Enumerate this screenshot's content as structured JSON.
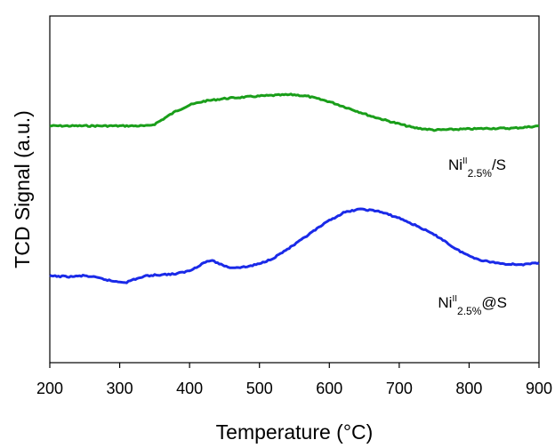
{
  "chart_data": {
    "type": "line",
    "title": "",
    "xlabel": "Temperature (°C)",
    "ylabel": "TCD Signal (a.u.)",
    "xlim": [
      200,
      900
    ],
    "ylim": [
      0,
      100
    ],
    "xticks": [
      200,
      300,
      400,
      500,
      600,
      700,
      800,
      900
    ],
    "grid": false,
    "y_tick_labels": false,
    "series": [
      {
        "label_base": "Ni",
        "label_sup": "II",
        "label_sub": "2.5%",
        "label_suffix": "/S",
        "color": "#1a9e1a",
        "x": [
          200,
          250,
          300,
          320,
          340,
          350,
          360,
          380,
          400,
          420,
          450,
          500,
          530,
          550,
          570,
          600,
          630,
          660,
          690,
          720,
          750,
          780,
          800,
          830,
          860,
          880,
          900
        ],
        "y": [
          68.3,
          68.3,
          68.3,
          68.3,
          68.3,
          68.8,
          70.0,
          72.5,
          74.3,
          75.4,
          76.2,
          76.9,
          77.2,
          77.3,
          76.8,
          75.3,
          73.2,
          71.1,
          69.4,
          67.8,
          67.1,
          67.3,
          67.4,
          67.6,
          67.6,
          67.9,
          68.3
        ]
      },
      {
        "label_base": "Ni",
        "label_sup": "II",
        "label_sub": "2.5%",
        "label_suffix": "@S",
        "color": "#1a2ae8",
        "x": [
          200,
          230,
          250,
          270,
          290,
          310,
          320,
          340,
          360,
          380,
          400,
          410,
          420,
          430,
          440,
          450,
          460,
          480,
          500,
          520,
          550,
          580,
          600,
          620,
          640,
          650,
          670,
          700,
          730,
          760,
          780,
          800,
          820,
          850,
          880,
          900
        ],
        "y": [
          25.0,
          24.8,
          25.1,
          24.4,
          23.5,
          23.2,
          24.0,
          25.1,
          25.4,
          25.6,
          26.5,
          27.6,
          28.8,
          29.5,
          28.8,
          27.9,
          27.4,
          27.6,
          28.5,
          30.2,
          34.0,
          38.3,
          41.0,
          43.2,
          44.2,
          44.2,
          43.7,
          41.7,
          39.0,
          35.8,
          32.9,
          30.8,
          29.4,
          28.5,
          28.3,
          28.8
        ]
      }
    ]
  }
}
